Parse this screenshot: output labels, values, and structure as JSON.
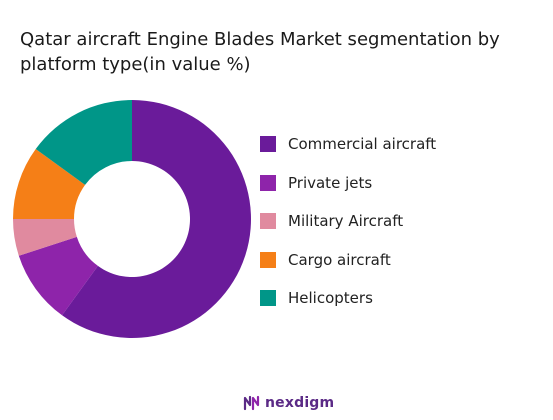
{
  "title": "Qatar aircraft Engine Blades Market segmentation by platform type(in value %)",
  "chart_data": {
    "type": "pie",
    "donut": true,
    "title": "Qatar aircraft Engine Blades Market segmentation by platform type(in value %)",
    "categories": [
      "Commercial aircraft",
      "Private jets",
      "Military Aircraft",
      "Cargo aircraft",
      "Helicopters"
    ],
    "values": [
      60,
      10,
      5,
      10,
      15
    ],
    "colors": [
      "#6a1b9a",
      "#8e24aa",
      "#e08a9f",
      "#f57f17",
      "#009688"
    ],
    "legend_position": "right"
  },
  "brand": {
    "name": "nexdigm",
    "color": "#5b2a86"
  }
}
